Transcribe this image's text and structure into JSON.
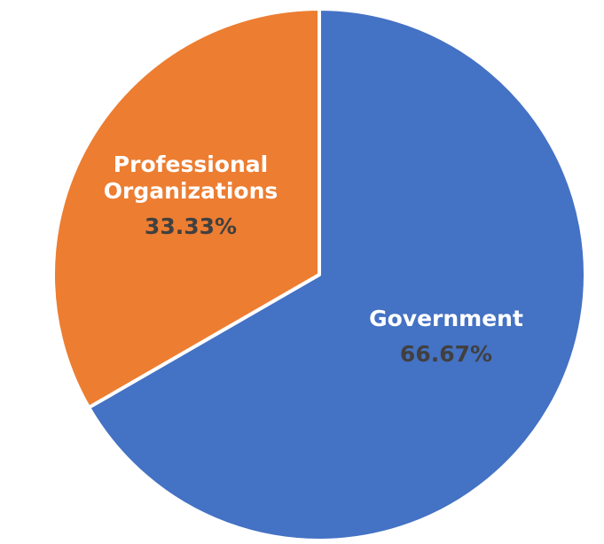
{
  "chart_data": {
    "type": "pie",
    "slices": [
      {
        "label_lines": [
          "Government"
        ],
        "value": 66.67,
        "value_label": "66.67%",
        "color": "#4472C4"
      },
      {
        "label_lines": [
          "Professional",
          "Organizations"
        ],
        "value": 33.33,
        "value_label": "33.33%",
        "color": "#ED7D31"
      }
    ],
    "start_angle_deg": 0,
    "direction": "clockwise",
    "separator_color": "#ffffff",
    "value_label_color": "#404040",
    "category_label_color": "#ffffff",
    "legend": "none"
  }
}
